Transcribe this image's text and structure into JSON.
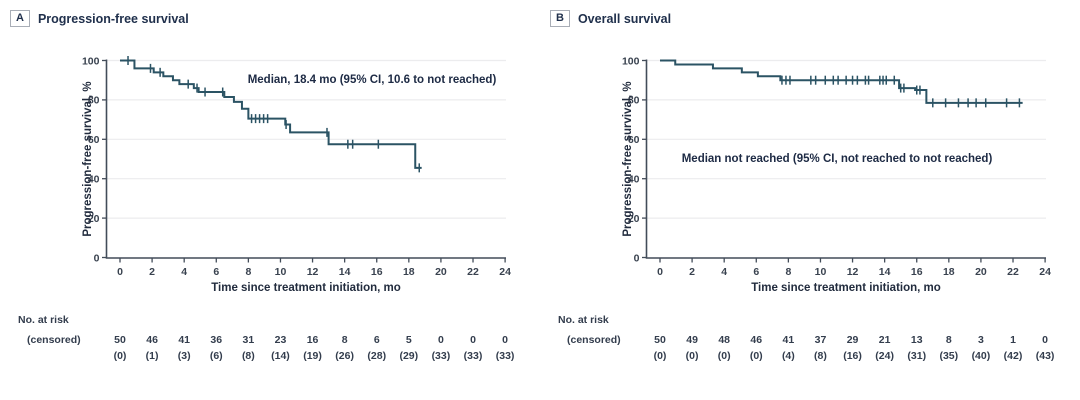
{
  "chart_data": [
    {
      "type": "line",
      "subtype": "kaplan-meier-step",
      "panel_letter": "A",
      "title": "Progression-free survival",
      "annotation": "Median, 18.4 mo (95% CI, 10.6 to not reached)",
      "xlabel": "Time since treatment initiation, mo",
      "ylabel": "Progression-free survival, %",
      "xlim": [
        0,
        24
      ],
      "ylim": [
        0,
        100
      ],
      "xticks": [
        0,
        2,
        4,
        6,
        8,
        10,
        12,
        14,
        16,
        18,
        20,
        22,
        24
      ],
      "yticks": [
        0,
        20,
        40,
        60,
        80,
        100
      ],
      "grid": "horizontal",
      "legend": "none",
      "curve_color": "#2b5364",
      "km_start": [
        0,
        100
      ],
      "km_events": [
        [
          0.9,
          96
        ],
        [
          2.1,
          94
        ],
        [
          2.7,
          92
        ],
        [
          3.3,
          90
        ],
        [
          3.7,
          88
        ],
        [
          4.6,
          86
        ],
        [
          4.9,
          84
        ],
        [
          6.5,
          81.5
        ],
        [
          7.1,
          79
        ],
        [
          7.6,
          75.5
        ],
        [
          8.0,
          70.5
        ],
        [
          10.3,
          67.5
        ],
        [
          10.6,
          63.5
        ],
        [
          13.0,
          57.5
        ],
        [
          18.4,
          45.5
        ]
      ],
      "km_end_time": 18.8,
      "censor_marks": [
        [
          0.5,
          100
        ],
        [
          1.9,
          96
        ],
        [
          2.5,
          94
        ],
        [
          4.25,
          88
        ],
        [
          4.8,
          86
        ],
        [
          5.3,
          84
        ],
        [
          6.4,
          84
        ],
        [
          8.2,
          70.5
        ],
        [
          8.45,
          70.5
        ],
        [
          8.7,
          70.5
        ],
        [
          8.95,
          70.5
        ],
        [
          9.2,
          70.5
        ],
        [
          10.35,
          67.5
        ],
        [
          12.9,
          63.5
        ],
        [
          14.2,
          57.5
        ],
        [
          14.5,
          57.5
        ],
        [
          16.1,
          57.5
        ],
        [
          18.65,
          45.5
        ]
      ],
      "at_risk": {
        "label": "No. at risk",
        "sublabel": "(censored)",
        "times": [
          0,
          2,
          4,
          6,
          8,
          10,
          12,
          14,
          16,
          18,
          20,
          22,
          24
        ],
        "n": [
          "50",
          "46",
          "41",
          "36",
          "31",
          "23",
          "16",
          "8",
          "6",
          "5",
          "0",
          "0",
          "0"
        ],
        "censored": [
          "(0)",
          "(1)",
          "(3)",
          "(6)",
          "(8)",
          "(14)",
          "(19)",
          "(26)",
          "(28)",
          "(29)",
          "(33)",
          "(33)",
          "(33)"
        ]
      }
    },
    {
      "type": "line",
      "subtype": "kaplan-meier-step",
      "panel_letter": "B",
      "title": "Overall survival",
      "annotation": "Median not reached (95% CI, not reached to not reached)",
      "xlabel": "Time since treatment initiation, mo",
      "ylabel": "Progression-free survival, %",
      "xlim": [
        0,
        24
      ],
      "ylim": [
        0,
        100
      ],
      "xticks": [
        0,
        2,
        4,
        6,
        8,
        10,
        12,
        14,
        16,
        18,
        20,
        22,
        24
      ],
      "yticks": [
        0,
        20,
        40,
        60,
        80,
        100
      ],
      "grid": "horizontal",
      "legend": "none",
      "curve_color": "#2b5364",
      "km_start": [
        0,
        100
      ],
      "km_events": [
        [
          0.95,
          98
        ],
        [
          3.3,
          96
        ],
        [
          5.1,
          94
        ],
        [
          6.1,
          92
        ],
        [
          7.5,
          90
        ],
        [
          14.9,
          86
        ],
        [
          15.9,
          85
        ],
        [
          16.6,
          78.5
        ]
      ],
      "km_end_time": 22.6,
      "censor_marks": [
        [
          7.6,
          90
        ],
        [
          7.85,
          90
        ],
        [
          8.1,
          90
        ],
        [
          9.4,
          90
        ],
        [
          9.7,
          90
        ],
        [
          10.3,
          90
        ],
        [
          10.8,
          90
        ],
        [
          11.1,
          90
        ],
        [
          11.6,
          90
        ],
        [
          12.0,
          90
        ],
        [
          12.3,
          90
        ],
        [
          12.8,
          90
        ],
        [
          13.0,
          90
        ],
        [
          13.7,
          90
        ],
        [
          13.9,
          90
        ],
        [
          14.1,
          90
        ],
        [
          14.6,
          90
        ],
        [
          15.0,
          86
        ],
        [
          15.2,
          86
        ],
        [
          16.0,
          85
        ],
        [
          16.2,
          85
        ],
        [
          17.0,
          78.5
        ],
        [
          17.8,
          78.5
        ],
        [
          18.6,
          78.5
        ],
        [
          19.2,
          78.5
        ],
        [
          19.7,
          78.5
        ],
        [
          20.3,
          78.5
        ],
        [
          21.6,
          78.5
        ],
        [
          22.4,
          78.5
        ]
      ],
      "at_risk": {
        "label": "No. at risk",
        "sublabel": "(censored)",
        "times": [
          0,
          2,
          4,
          6,
          8,
          10,
          12,
          14,
          16,
          18,
          20,
          22,
          24
        ],
        "n": [
          "50",
          "49",
          "48",
          "46",
          "41",
          "37",
          "29",
          "21",
          "13",
          "8",
          "3",
          "1",
          "0"
        ],
        "censored": [
          "(0)",
          "(0)",
          "(0)",
          "(0)",
          "(4)",
          "(8)",
          "(16)",
          "(24)",
          "(31)",
          "(35)",
          "(40)",
          "(42)",
          "(43)"
        ]
      }
    }
  ],
  "colors": {
    "curve": "#2b5364",
    "axis": "#424c59",
    "grid": "#ececee",
    "text": "#20304c"
  }
}
